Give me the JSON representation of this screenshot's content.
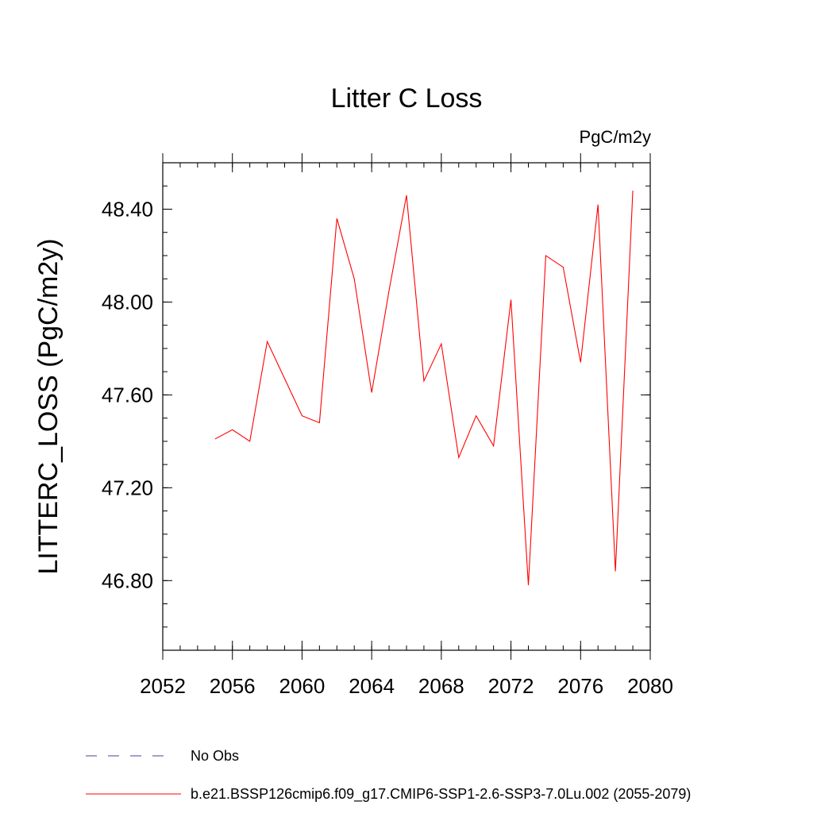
{
  "chart_data": {
    "type": "line",
    "title": "Litter C Loss",
    "units_label": "PgC/m2y",
    "ylabel": "LITTERC_LOSS  (PgC/m2y)",
    "xlabel": "",
    "xlim": [
      2052,
      2080
    ],
    "ylim": [
      46.5,
      48.6
    ],
    "x_ticks": [
      2052,
      2056,
      2060,
      2064,
      2068,
      2072,
      2076,
      2080
    ],
    "x_tick_labels": [
      "2052",
      "2056",
      "2060",
      "2064",
      "2068",
      "2072",
      "2076",
      "2080"
    ],
    "x_minor_step": 1,
    "y_ticks": [
      46.8,
      47.2,
      47.6,
      48.0,
      48.4
    ],
    "y_tick_labels": [
      "46.80",
      "47.20",
      "47.60",
      "48.00",
      "48.40"
    ],
    "y_minor_step": 0.1,
    "legend_position": "bottom-left",
    "series": [
      {
        "name": "b.e21.BSSP126cmip6.f09_g17.CMIP6-SSP1-2.6-SSP3-7.0Lu.002 (2055-2079)",
        "color": "#ff0000",
        "style": "solid",
        "x": [
          2055,
          2056,
          2057,
          2058,
          2059,
          2060,
          2061,
          2062,
          2063,
          2064,
          2065,
          2066,
          2067,
          2068,
          2069,
          2070,
          2071,
          2072,
          2073,
          2074,
          2075,
          2076,
          2077,
          2078,
          2079
        ],
        "y": [
          47.41,
          47.45,
          47.4,
          47.83,
          47.67,
          47.51,
          47.48,
          48.36,
          48.1,
          47.61,
          48.05,
          48.46,
          47.66,
          47.82,
          47.33,
          47.51,
          47.38,
          48.01,
          46.78,
          48.2,
          48.15,
          47.74,
          48.42,
          46.84,
          48.48
        ]
      },
      {
        "name": "No Obs",
        "color": "#4b3c9e",
        "style": "dashed",
        "x": [],
        "y": []
      }
    ]
  }
}
